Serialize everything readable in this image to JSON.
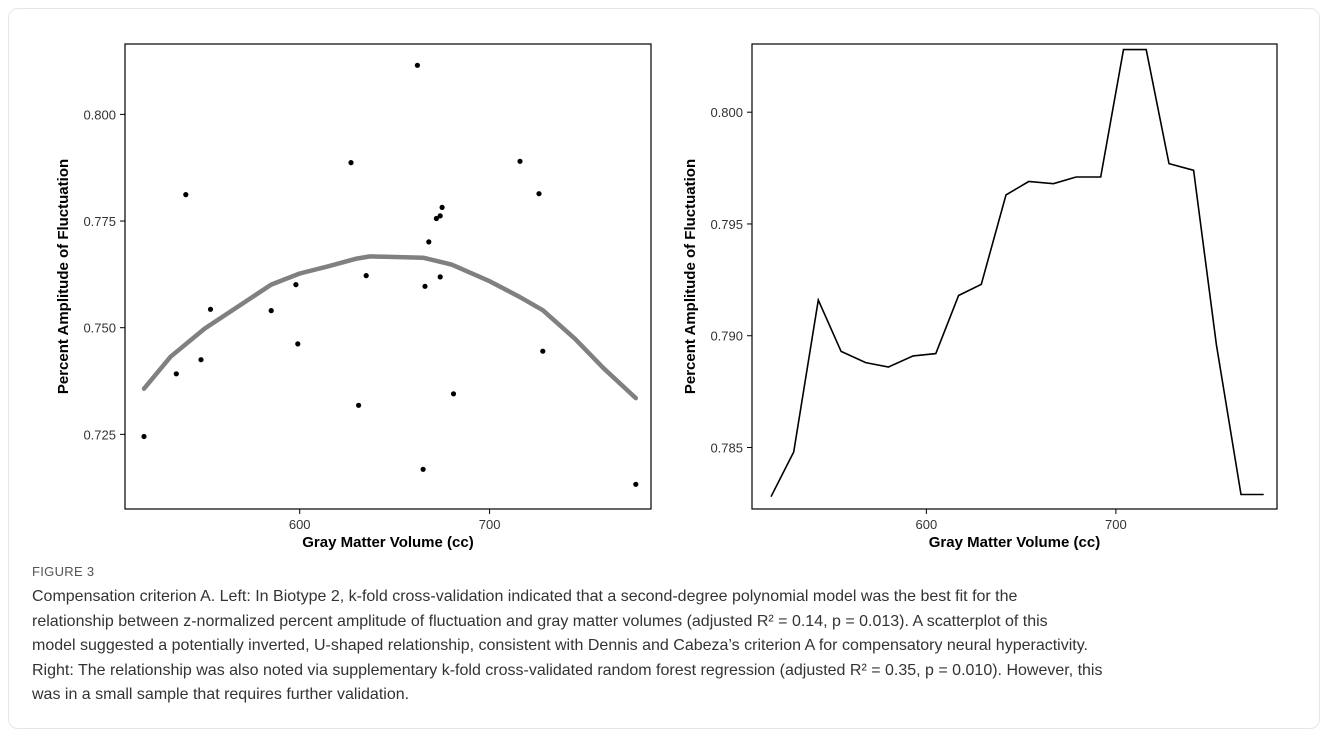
{
  "chart_data": [
    {
      "type": "scatter",
      "xlabel": "Gray Matter Volume (cc)",
      "ylabel": "Percent Amplitude of Fluctuation",
      "xlim": [
        508,
        785
      ],
      "ylim": [
        0.7075,
        0.8165
      ],
      "xticks": [
        600,
        700
      ],
      "yticks": [
        0.725,
        0.75,
        0.775,
        0.8
      ],
      "ytick_labels": [
        "0.725",
        "0.750",
        "0.775",
        "0.800"
      ],
      "points": [
        [
          518,
          0.7245
        ],
        [
          535,
          0.7392
        ],
        [
          540,
          0.7812
        ],
        [
          548,
          0.7425
        ],
        [
          553,
          0.7543
        ],
        [
          585,
          0.754
        ],
        [
          598,
          0.7601
        ],
        [
          599,
          0.7462
        ],
        [
          627,
          0.7887
        ],
        [
          631,
          0.7318
        ],
        [
          635,
          0.7622
        ],
        [
          662,
          0.8115
        ],
        [
          665,
          0.7168
        ],
        [
          666,
          0.7597
        ],
        [
          668,
          0.7701
        ],
        [
          672,
          0.7756
        ],
        [
          674,
          0.7762
        ],
        [
          674,
          0.7619
        ],
        [
          675,
          0.7782
        ],
        [
          681,
          0.7345
        ],
        [
          716,
          0.789
        ],
        [
          726,
          0.7814
        ],
        [
          728,
          0.7445
        ],
        [
          777,
          0.7133
        ]
      ],
      "fit_curve": {
        "x": [
          518,
          532,
          550,
          565,
          585,
          600,
          615,
          630,
          637,
          665,
          680,
          700,
          715,
          728,
          745,
          760,
          777
        ],
        "y": [
          0.7357,
          0.7432,
          0.7498,
          0.7542,
          0.7601,
          0.7627,
          0.7644,
          0.7662,
          0.7667,
          0.7664,
          0.7648,
          0.7609,
          0.7574,
          0.7541,
          0.7474,
          0.7405,
          0.7335
        ],
        "color": "#808080"
      }
    },
    {
      "type": "line",
      "xlabel": "Gray Matter Volume (cc)",
      "ylabel": "Percent Amplitude of Fluctuation",
      "xlim": [
        508,
        785
      ],
      "ylim": [
        0.78225,
        0.80305
      ],
      "xticks": [
        600,
        700
      ],
      "yticks": [
        0.785,
        0.79,
        0.795,
        0.8
      ],
      "ytick_labels": [
        "0.785",
        "0.790",
        "0.795",
        "0.800"
      ],
      "series": [
        {
          "color": "#000000",
          "x": [
            518,
            530,
            543,
            555,
            568,
            580,
            593,
            605,
            617,
            629,
            642,
            654,
            667,
            679,
            692,
            704,
            716,
            728,
            741,
            753,
            766,
            778
          ],
          "y": [
            0.7828,
            0.7848,
            0.7916,
            0.7893,
            0.7888,
            0.7886,
            0.7891,
            0.7892,
            0.7918,
            0.7923,
            0.7963,
            0.7969,
            0.7968,
            0.7971,
            0.7971,
            0.8028,
            0.8028,
            0.7977,
            0.7974,
            0.7896,
            0.7829,
            0.7829
          ]
        }
      ]
    }
  ],
  "caption": {
    "label": "FIGURE 3",
    "lines": [
      "Compensation criterion A. Left: In Biotype 2, k-fold cross-validation indicated that a second-degree polynomial model was the best fit for the",
      "relationship between z-normalized percent amplitude of fluctuation and gray matter volumes (adjusted R² = 0.14, p = 0.013). A scatterplot of this",
      "model suggested a potentially inverted, U-shaped relationship, consistent with Dennis and Cabeza’s criterion A for compensatory neural hyperactivity.",
      "Right: The relationship was also noted via supplementary k-fold cross-validated random forest regression (adjusted R² = 0.35, p = 0.010). However, this",
      "was in a small sample that requires further validation."
    ]
  }
}
